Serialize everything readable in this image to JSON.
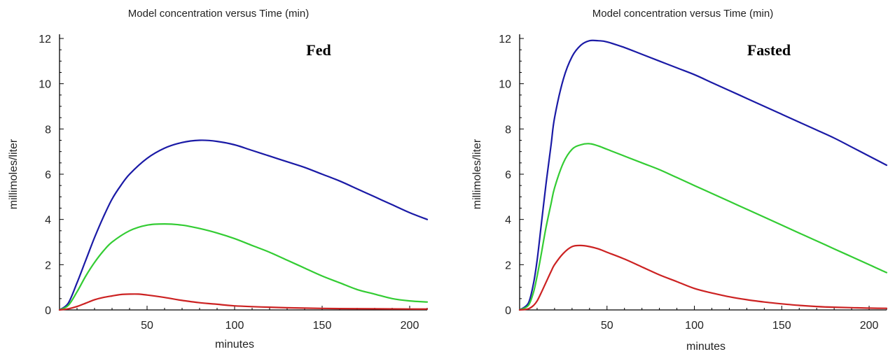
{
  "chart_data": [
    {
      "type": "line",
      "title": "Model concentration versus Time (min)",
      "xlabel": "minutes",
      "ylabel": "millimoles/liter",
      "annotation": "Fed",
      "xlim": [
        0,
        210
      ],
      "ylim": [
        0,
        12
      ],
      "xticks": [
        50,
        100,
        150,
        200
      ],
      "yticks": [
        0,
        2,
        4,
        6,
        8,
        10,
        12
      ],
      "series": [
        {
          "color": "#1a1aa6",
          "x": [
            0,
            5,
            10,
            15,
            20,
            25,
            30,
            35,
            40,
            50,
            60,
            70,
            80,
            90,
            100,
            110,
            120,
            130,
            140,
            150,
            160,
            170,
            180,
            190,
            200,
            210
          ],
          "y": [
            0,
            0.3,
            1.2,
            2.2,
            3.2,
            4.1,
            4.9,
            5.5,
            6.0,
            6.7,
            7.15,
            7.4,
            7.5,
            7.45,
            7.3,
            7.05,
            6.8,
            6.55,
            6.3,
            6.0,
            5.7,
            5.35,
            5.0,
            4.65,
            4.3,
            4.0
          ]
        },
        {
          "color": "#33cc33",
          "x": [
            0,
            5,
            10,
            15,
            20,
            25,
            30,
            40,
            50,
            60,
            70,
            80,
            90,
            100,
            110,
            120,
            130,
            140,
            150,
            160,
            170,
            180,
            190,
            200,
            210
          ],
          "y": [
            0,
            0.2,
            0.8,
            1.5,
            2.1,
            2.6,
            3.0,
            3.5,
            3.75,
            3.8,
            3.75,
            3.6,
            3.4,
            3.15,
            2.85,
            2.55,
            2.2,
            1.85,
            1.5,
            1.2,
            0.9,
            0.7,
            0.5,
            0.4,
            0.35
          ]
        },
        {
          "color": "#cc2222",
          "x": [
            0,
            5,
            10,
            15,
            20,
            25,
            30,
            35,
            40,
            45,
            50,
            60,
            70,
            80,
            90,
            100,
            120,
            140,
            160,
            180,
            200,
            210
          ],
          "y": [
            0,
            0.05,
            0.15,
            0.3,
            0.45,
            0.55,
            0.62,
            0.68,
            0.7,
            0.7,
            0.66,
            0.55,
            0.42,
            0.32,
            0.25,
            0.18,
            0.12,
            0.08,
            0.06,
            0.05,
            0.04,
            0.04
          ]
        }
      ]
    },
    {
      "type": "line",
      "title": "Model concentration versus Time (min)",
      "xlabel": "minutes",
      "ylabel": "millimoles/liter",
      "annotation": "Fasted",
      "xlim": [
        0,
        210
      ],
      "ylim": [
        0,
        12
      ],
      "xticks": [
        50,
        100,
        150,
        200
      ],
      "yticks": [
        0,
        2,
        4,
        6,
        8,
        10,
        12
      ],
      "series": [
        {
          "color": "#1a1aa6",
          "x": [
            0,
            5,
            8,
            10,
            12,
            15,
            18,
            20,
            25,
            30,
            35,
            40,
            45,
            50,
            60,
            70,
            80,
            90,
            100,
            110,
            120,
            130,
            140,
            150,
            160,
            170,
            180,
            190,
            200,
            210
          ],
          "y": [
            0,
            0.3,
            1.2,
            2.2,
            3.5,
            5.5,
            7.3,
            8.5,
            10.2,
            11.2,
            11.7,
            11.9,
            11.9,
            11.85,
            11.6,
            11.3,
            11.0,
            10.7,
            10.4,
            10.05,
            9.7,
            9.35,
            9.0,
            8.65,
            8.3,
            7.95,
            7.6,
            7.2,
            6.8,
            6.4
          ]
        },
        {
          "color": "#33cc33",
          "x": [
            0,
            5,
            8,
            10,
            12,
            15,
            18,
            20,
            25,
            30,
            35,
            40,
            45,
            50,
            60,
            70,
            80,
            90,
            100,
            110,
            120,
            130,
            140,
            150,
            160,
            170,
            180,
            190,
            200,
            210
          ],
          "y": [
            0,
            0.2,
            0.8,
            1.5,
            2.3,
            3.6,
            4.7,
            5.4,
            6.5,
            7.1,
            7.3,
            7.35,
            7.25,
            7.1,
            6.8,
            6.5,
            6.2,
            5.85,
            5.5,
            5.15,
            4.8,
            4.45,
            4.1,
            3.75,
            3.4,
            3.05,
            2.7,
            2.35,
            2.0,
            1.65
          ]
        },
        {
          "color": "#cc2222",
          "x": [
            0,
            5,
            8,
            10,
            12,
            15,
            18,
            20,
            25,
            30,
            35,
            40,
            45,
            50,
            60,
            70,
            80,
            90,
            100,
            110,
            120,
            130,
            140,
            150,
            160,
            170,
            180,
            190,
            200,
            210
          ],
          "y": [
            0,
            0.05,
            0.2,
            0.4,
            0.7,
            1.2,
            1.7,
            2.0,
            2.5,
            2.8,
            2.85,
            2.8,
            2.7,
            2.55,
            2.25,
            1.9,
            1.55,
            1.25,
            0.95,
            0.75,
            0.58,
            0.45,
            0.35,
            0.27,
            0.2,
            0.15,
            0.12,
            0.1,
            0.08,
            0.07
          ]
        }
      ]
    }
  ]
}
